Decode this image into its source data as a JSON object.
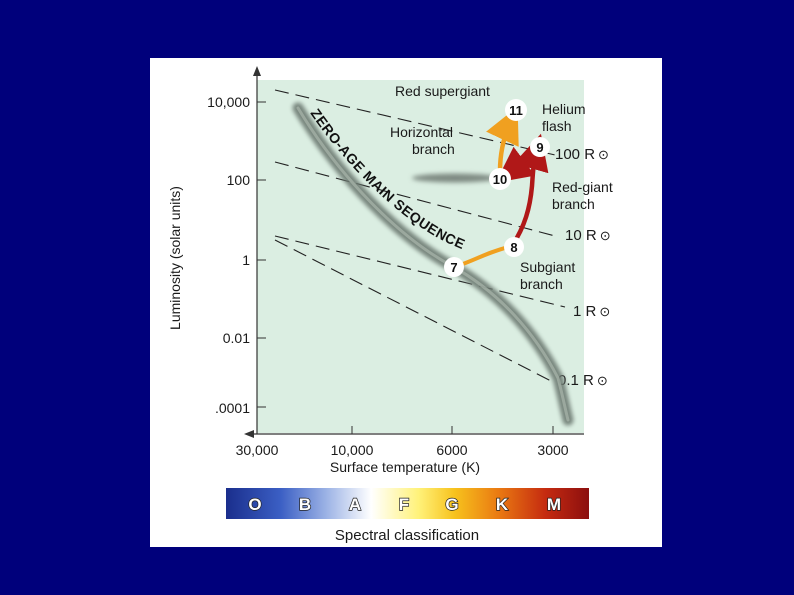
{
  "y_axis": {
    "label": "Luminosity (solar units)",
    "ticks": [
      "10,000",
      "100",
      "1",
      "0.01",
      ".0001"
    ]
  },
  "x_axis": {
    "label": "Surface temperature (K)",
    "ticks": [
      "30,000",
      "10,000",
      "6000",
      "3000"
    ]
  },
  "main_sequence_label": "ZERO-AGE MAIN SEQUENCE",
  "radius_lines": [
    {
      "label": "100 R",
      "symbol": "⊙"
    },
    {
      "label": "10 R",
      "symbol": "⊙"
    },
    {
      "label": "1 R",
      "symbol": "⊙"
    },
    {
      "label": "0.1 R",
      "symbol": "⊙"
    }
  ],
  "annotations": {
    "red_supergiant": "Red supergiant",
    "helium_flash_1": "Helium",
    "helium_flash_2": "flash",
    "horizontal_branch_1": "Horizontal",
    "horizontal_branch_2": "branch",
    "red_giant_branch_1": "Red-giant",
    "red_giant_branch_2": "branch",
    "subgiant_branch_1": "Subgiant",
    "subgiant_branch_2": "branch"
  },
  "stages": [
    "7",
    "8",
    "9",
    "10",
    "11"
  ],
  "spectral": {
    "classes": [
      "O",
      "B",
      "A",
      "F",
      "G",
      "K",
      "M"
    ],
    "caption": "Spectral classification"
  },
  "colors": {
    "background": "#00007b",
    "plot_area": "#dbeee2",
    "evolution_early": "#f0a020",
    "evolution_late": "#b01818"
  }
}
